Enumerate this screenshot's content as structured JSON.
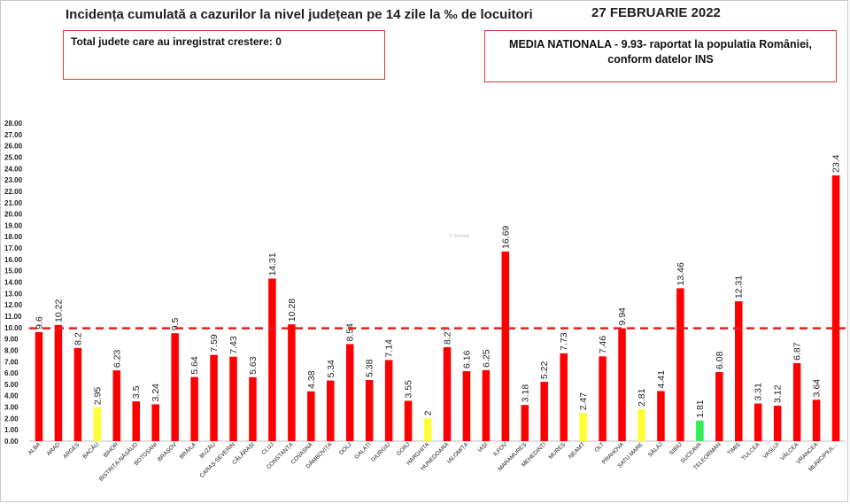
{
  "header": {
    "title": "Incidența cumulată a cazurilor la nivel județean pe 14 zile la ‰ de locuitori",
    "date": "27 FEBRUARIE 2022",
    "left_note": "Total judete care au inregistrat crestere: 0",
    "national_line1": "MEDIA NATIONALA -  9.93-  raportat la populatia României,",
    "national_line2": "conform datelor INS"
  },
  "watermark": "© Shohidy",
  "colors": {
    "red": "#ff0000",
    "yellow": "#ffff33",
    "green": "#33ee55",
    "dashed_line": "#e02020"
  },
  "chart_data": {
    "type": "bar",
    "title": "Incidența cumulată a cazurilor la nivel județean pe 14 zile la ‰ de locuitori",
    "xlabel": "",
    "ylabel": "",
    "ylim": [
      0,
      28
    ],
    "ytick_step": 1,
    "ytick_labels": [
      "0.00",
      "1.00",
      "2.00",
      "3.00",
      "4.00",
      "5.00",
      "6.00",
      "7.00",
      "8.00",
      "9.00",
      "10.00",
      "11.00",
      "12.00",
      "13.00",
      "14.00",
      "15.00",
      "16.00",
      "17.00",
      "18.00",
      "19.00",
      "20.00",
      "21.00",
      "22.00",
      "23.00",
      "24.00",
      "25.00",
      "26.00",
      "27.00",
      "28.00"
    ],
    "reference_line": 9.93,
    "grid": false,
    "categories": [
      "ALBA",
      "ARAD",
      "ARGEȘ",
      "BACĂU",
      "BIHOR",
      "BISTRIȚA-NĂSĂUD",
      "BOTOȘANI",
      "BRAȘOV",
      "BRĂILA",
      "BUZĂU",
      "CARAȘ-SEVERIN",
      "CĂLĂRAȘI",
      "CLUJ",
      "CONSTANȚA",
      "COVASNA",
      "DÂMBOVIȚA",
      "DOLJ",
      "GALAȚI",
      "GIURGIU",
      "GORJ",
      "HARGHITA",
      "HUNEDOARA",
      "IALOMIȚA",
      "IAȘI",
      "ILFOV",
      "MARAMUREȘ",
      "MEHEDINȚI",
      "MUREȘ",
      "NEAMȚ",
      "OLT",
      "PRAHOVA",
      "SATU MARE",
      "SĂLAJ",
      "SIBIU",
      "SUCEAVA",
      "TELEORMAN",
      "TIMIȘ",
      "TULCEA",
      "VASLUI",
      "VÂLCEA",
      "VRANCEA",
      "MUNICIPIUL..."
    ],
    "values": [
      9.6,
      10.22,
      8.2,
      2.95,
      6.23,
      3.5,
      3.24,
      9.5,
      5.64,
      7.59,
      7.43,
      5.63,
      14.31,
      10.28,
      4.38,
      5.34,
      8.54,
      5.38,
      7.14,
      3.55,
      2,
      8.27,
      6.16,
      6.25,
      16.69,
      3.18,
      5.22,
      7.73,
      2.47,
      7.46,
      9.94,
      2.81,
      4.41,
      13.46,
      1.81,
      6.08,
      12.31,
      3.31,
      3.12,
      6.87,
      3.64,
      23.4
    ],
    "value_labels": [
      "9.6",
      "10.22",
      "8.2",
      "2.95",
      "6.23",
      "3.5",
      "3.24",
      "9.5",
      "5.64",
      "7.59",
      "7.43",
      "5.63",
      "14.31",
      "10.28",
      "4.38",
      "5.34",
      "8.54",
      "5.38",
      "7.14",
      "3.55",
      "2",
      "8.27",
      "6.16",
      "6.25",
      "16.69",
      "3.18",
      "5.22",
      "7.73",
      "2.47",
      "7.46",
      "9.94",
      "2.81",
      "4.41",
      "13.46",
      "1.81",
      "6.08",
      "12.31",
      "3.31",
      "3.12",
      "6.87",
      "3.64",
      "23.4"
    ],
    "bar_colors": [
      "red",
      "red",
      "red",
      "yellow",
      "red",
      "red",
      "red",
      "red",
      "red",
      "red",
      "red",
      "red",
      "red",
      "red",
      "red",
      "red",
      "red",
      "red",
      "red",
      "red",
      "yellow",
      "red",
      "red",
      "red",
      "red",
      "red",
      "red",
      "red",
      "yellow",
      "red",
      "red",
      "yellow",
      "red",
      "red",
      "green",
      "red",
      "red",
      "red",
      "red",
      "red",
      "red",
      "red"
    ]
  }
}
